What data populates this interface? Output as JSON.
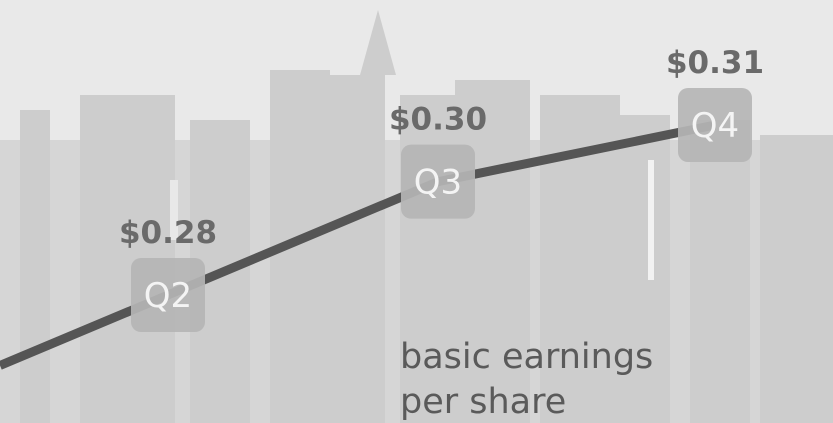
{
  "chart_data": {
    "type": "line",
    "title": [
      "basic earnings",
      "per share"
    ],
    "categories": [
      "Q2",
      "Q3",
      "Q4"
    ],
    "values": [
      0.28,
      0.3,
      0.31
    ],
    "value_labels": [
      "$0.28",
      "$0.30",
      "$0.31"
    ],
    "color": "#555555"
  }
}
